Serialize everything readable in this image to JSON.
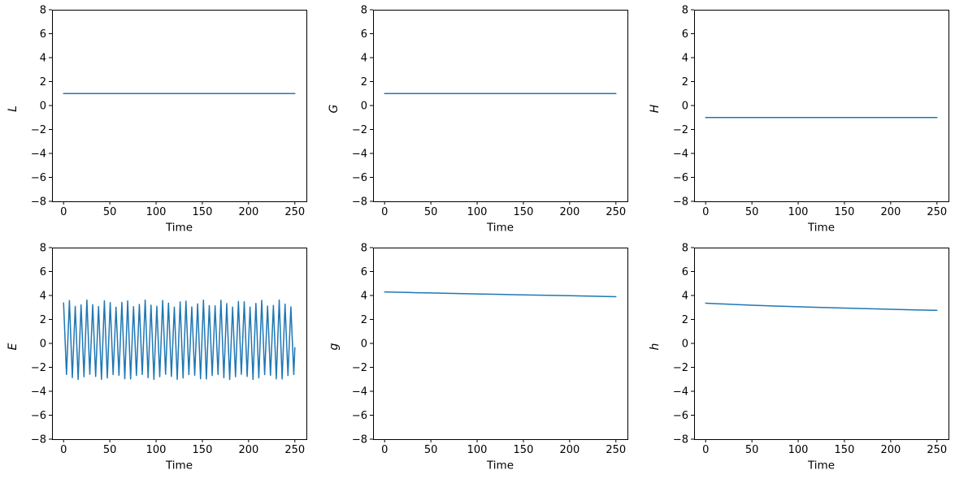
{
  "figure": {
    "background": "#ffffff",
    "line_color": "#1f77b4",
    "axis_color": "#000000",
    "text_color": "#000000",
    "rows": 2,
    "cols": 3
  },
  "chart_data": [
    {
      "type": "line",
      "title": "",
      "xlabel": "Time",
      "ylabel": "L",
      "xlim": [
        -12.5,
        262.5
      ],
      "ylim": [
        -8,
        8
      ],
      "grid": false,
      "legend": "none",
      "xticks": [
        0,
        50,
        100,
        150,
        200,
        250
      ],
      "xticklabels": [
        "0",
        "50",
        "100",
        "150",
        "200",
        "250"
      ],
      "yticks": [
        -8,
        -6,
        -4,
        -2,
        0,
        2,
        4,
        6,
        8
      ],
      "yticklabels": [
        "−8",
        "−6",
        "−4",
        "−2",
        "0",
        "2",
        "4",
        "6",
        "8"
      ],
      "series": [
        {
          "name": "L",
          "kind": "constant",
          "value": 1.0,
          "t_start": 0,
          "t_end": 250,
          "color": "#1f77b4"
        }
      ]
    },
    {
      "type": "line",
      "title": "",
      "xlabel": "Time",
      "ylabel": "G",
      "xlim": [
        -12.5,
        262.5
      ],
      "ylim": [
        -8,
        8
      ],
      "grid": false,
      "legend": "none",
      "xticks": [
        0,
        50,
        100,
        150,
        200,
        250
      ],
      "xticklabels": [
        "0",
        "50",
        "100",
        "150",
        "200",
        "250"
      ],
      "yticks": [
        -8,
        -6,
        -4,
        -2,
        0,
        2,
        4,
        6,
        8
      ],
      "yticklabels": [
        "−8",
        "−6",
        "−4",
        "−2",
        "0",
        "2",
        "4",
        "6",
        "8"
      ],
      "series": [
        {
          "name": "G",
          "kind": "constant",
          "value": 1.0,
          "t_start": 0,
          "t_end": 250,
          "color": "#1f77b4"
        }
      ]
    },
    {
      "type": "line",
      "title": "",
      "xlabel": "Time",
      "ylabel": "H",
      "xlim": [
        -12.5,
        262.5
      ],
      "ylim": [
        -8,
        8
      ],
      "grid": false,
      "legend": "none",
      "xticks": [
        0,
        50,
        100,
        150,
        200,
        250
      ],
      "xticklabels": [
        "0",
        "50",
        "100",
        "150",
        "200",
        "250"
      ],
      "yticks": [
        -8,
        -6,
        -4,
        -2,
        0,
        2,
        4,
        6,
        8
      ],
      "yticklabels": [
        "−8",
        "−6",
        "−4",
        "−2",
        "0",
        "2",
        "4",
        "6",
        "8"
      ],
      "series": [
        {
          "name": "H",
          "kind": "constant",
          "value": -1.0,
          "t_start": 0,
          "t_end": 250,
          "color": "#1f77b4"
        }
      ]
    },
    {
      "type": "line",
      "title": "",
      "xlabel": "Time",
      "ylabel": "E",
      "xlim": [
        -12.5,
        262.5
      ],
      "ylim": [
        -8,
        8
      ],
      "grid": false,
      "legend": "none",
      "xticks": [
        0,
        50,
        100,
        150,
        200,
        250
      ],
      "xticklabels": [
        "0",
        "50",
        "100",
        "150",
        "200",
        "250"
      ],
      "yticks": [
        -8,
        -6,
        -4,
        -2,
        0,
        2,
        4,
        6,
        8
      ],
      "yticklabels": [
        "−8",
        "−6",
        "−4",
        "−2",
        "0",
        "2",
        "4",
        "6",
        "8"
      ],
      "series": [
        {
          "name": "E",
          "kind": "zigzag",
          "t_start": 0,
          "t_end": 250,
          "period": 6.3,
          "top_mean": 3.32,
          "top_amp": 0.3,
          "top_freq": 1.9,
          "top_phase": 0.2,
          "bottom_mean": -2.8,
          "bottom_amp": 0.22,
          "bottom_freq": 1.45,
          "bottom_phase": 2.0,
          "color": "#1f77b4"
        }
      ]
    },
    {
      "type": "line",
      "title": "",
      "xlabel": "Time",
      "ylabel": "g",
      "xlim": [
        -12.5,
        262.5
      ],
      "ylim": [
        -8,
        8
      ],
      "grid": false,
      "legend": "none",
      "xticks": [
        0,
        50,
        100,
        150,
        200,
        250
      ],
      "xticklabels": [
        "0",
        "50",
        "100",
        "150",
        "200",
        "250"
      ],
      "yticks": [
        -8,
        -6,
        -4,
        -2,
        0,
        2,
        4,
        6,
        8
      ],
      "yticklabels": [
        "−8",
        "−6",
        "−4",
        "−2",
        "0",
        "2",
        "4",
        "6",
        "8"
      ],
      "series": [
        {
          "name": "g",
          "kind": "points",
          "color": "#1f77b4",
          "points": [
            [
              0,
              4.3
            ],
            [
              25,
              4.25
            ],
            [
              50,
              4.21
            ],
            [
              75,
              4.17
            ],
            [
              100,
              4.13
            ],
            [
              125,
              4.09
            ],
            [
              150,
              4.05
            ],
            [
              175,
              4.02
            ],
            [
              200,
              3.98
            ],
            [
              225,
              3.94
            ],
            [
              250,
              3.9
            ]
          ]
        }
      ]
    },
    {
      "type": "line",
      "title": "",
      "xlabel": "Time",
      "ylabel": "h",
      "xlim": [
        -12.5,
        262.5
      ],
      "ylim": [
        -8,
        8
      ],
      "grid": false,
      "legend": "none",
      "xticks": [
        0,
        50,
        100,
        150,
        200,
        250
      ],
      "xticklabels": [
        "0",
        "50",
        "100",
        "150",
        "200",
        "250"
      ],
      "yticks": [
        -8,
        -6,
        -4,
        -2,
        0,
        2,
        4,
        6,
        8
      ],
      "yticklabels": [
        "−8",
        "−6",
        "−4",
        "−2",
        "0",
        "2",
        "4",
        "6",
        "8"
      ],
      "series": [
        {
          "name": "h",
          "kind": "points",
          "color": "#1f77b4",
          "points": [
            [
              0,
              3.36
            ],
            [
              25,
              3.27
            ],
            [
              50,
              3.19
            ],
            [
              75,
              3.12
            ],
            [
              100,
              3.06
            ],
            [
              125,
              3.0
            ],
            [
              150,
              2.95
            ],
            [
              175,
              2.9
            ],
            [
              200,
              2.85
            ],
            [
              225,
              2.8
            ],
            [
              250,
              2.76
            ]
          ]
        }
      ]
    }
  ]
}
